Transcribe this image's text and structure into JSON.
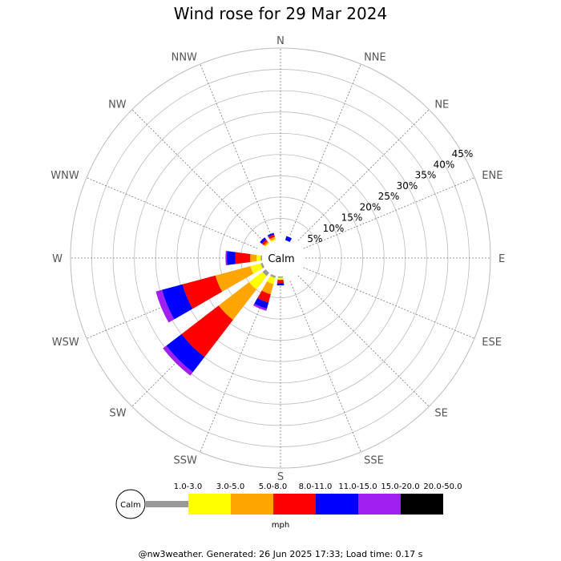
{
  "chart_data": {
    "type": "wind-rose",
    "title": "Wind rose for 29 Mar 2024",
    "directions": [
      "N",
      "NNE",
      "NE",
      "ENE",
      "E",
      "ESE",
      "SE",
      "SSE",
      "S",
      "SSW",
      "SW",
      "WSW",
      "W",
      "WNW",
      "NW",
      "NNW"
    ],
    "radial_ticks": [
      "5%",
      "10%",
      "15%",
      "20%",
      "25%",
      "30%",
      "35%",
      "40%",
      "45%"
    ],
    "radial_max_percent": 45,
    "center_label": "Calm",
    "units_label": "mph",
    "speed_bins": [
      {
        "label": "1.0-3.0",
        "color": "#999999"
      },
      {
        "label": "3.0-5.0",
        "color": "#ffff00"
      },
      {
        "label": "5.0-8.0",
        "color": "#ffa500"
      },
      {
        "label": "8.0-11.0",
        "color": "#ff0000"
      },
      {
        "label": "11.0-15.0",
        "color": "#0000ff"
      },
      {
        "label": "15.0-20.0",
        "color": "#a020f0"
      },
      {
        "label": "20.0-50.0",
        "color": "#000000"
      }
    ],
    "series": [
      {
        "direction": "NNE",
        "values": [
          0,
          0,
          0,
          0,
          1.0,
          0,
          0
        ]
      },
      {
        "direction": "S",
        "values": [
          0.3,
          0.5,
          0,
          0.8,
          0.5,
          0,
          0
        ]
      },
      {
        "direction": "SSW",
        "values": [
          0.5,
          1.5,
          2.5,
          2.0,
          1.5,
          0.5,
          0
        ]
      },
      {
        "direction": "SW",
        "values": [
          1.0,
          4.0,
          9.0,
          11.0,
          4.5,
          1.0,
          0
        ]
      },
      {
        "direction": "WSW",
        "values": [
          0.5,
          2.5,
          8.5,
          8.0,
          5.0,
          1.5,
          0
        ]
      },
      {
        "direction": "W",
        "values": [
          0.3,
          1.0,
          1.5,
          3.5,
          2.0,
          0.3,
          0
        ]
      },
      {
        "direction": "NW",
        "values": [
          0,
          0.2,
          0.4,
          0.6,
          0.6,
          0,
          0
        ]
      },
      {
        "direction": "NNW",
        "values": [
          0,
          0.3,
          0.5,
          0.6,
          0.4,
          0,
          0
        ]
      }
    ]
  },
  "footer": "@nw3weather. Generated: 26 Jun 2025 17:33; Load time: 0.17 s"
}
